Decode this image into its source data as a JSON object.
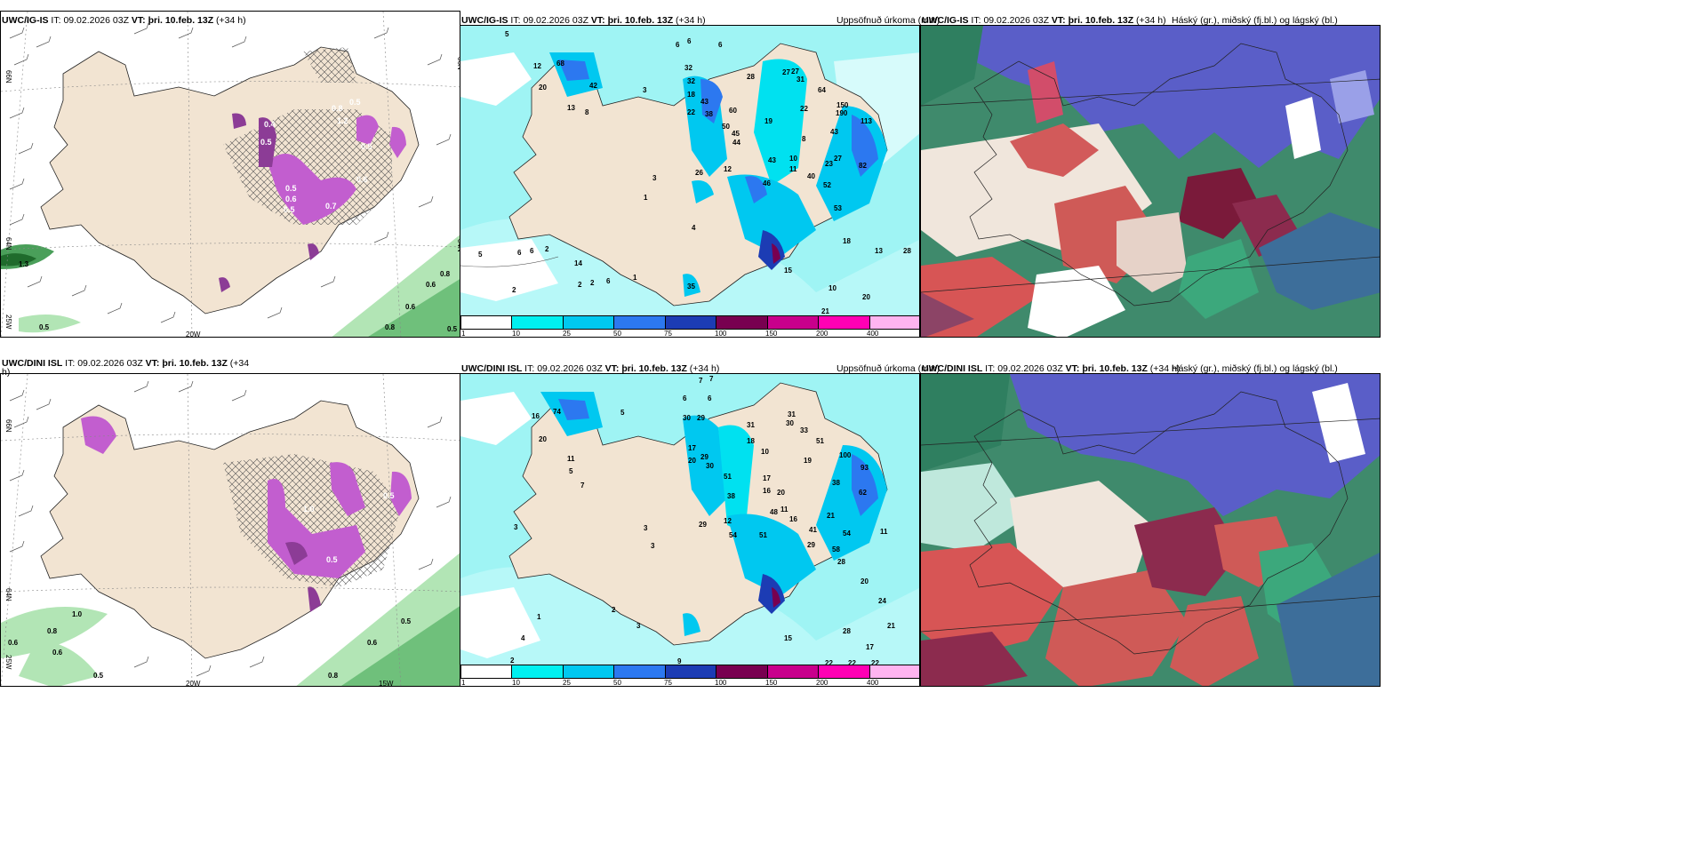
{
  "panels": {
    "top_left": {
      "model": "UWC/IG-IS",
      "it_label": "IT:",
      "it": "09.02.2026 03Z",
      "vt_label": "VT:",
      "vt": "þri. 10.feb. 13Z",
      "lead": "(+34 h)"
    },
    "top_mid": {
      "model": "UWC/IG-IS",
      "it_label": "IT:",
      "it": "09.02.2026 03Z",
      "vt_label": "VT:",
      "vt": "þri. 10.feb. 13Z",
      "lead": "(+34 h)",
      "right": "Uppsöfnuð úrkoma (mm)"
    },
    "top_right": {
      "model": "UWC/IG-IS",
      "it_label": "IT:",
      "it": "09.02.2026 03Z",
      "vt_label": "VT:",
      "vt": "þri. 10.feb. 13Z",
      "lead": "(+34 h)",
      "right": "Háský (gr.), miðský (fj.bl.) og lágský (bl.)"
    },
    "bot_left": {
      "model": "UWC/DINI ISL",
      "it_label": "IT:",
      "it": "09.02.2026 03Z",
      "vt_label": "VT:",
      "vt": "þri. 10.feb. 13Z",
      "lead": "(+34",
      "lead2": "h)"
    },
    "bot_mid": {
      "model": "UWC/DINI ISL",
      "it_label": "IT:",
      "it": "09.02.2026 03Z",
      "vt_label": "VT:",
      "vt": "þri. 10.feb. 13Z",
      "lead": "(+34 h)",
      "right": "Uppsöfnuð úrkoma (mm)"
    },
    "bot_right": {
      "model": "UWC/DINI ISL",
      "it_label": "IT:",
      "it": "09.02.2026 03Z",
      "vt_label": "VT:",
      "vt": "þri. 10.feb. 13Z",
      "lead": "(+34 h)",
      "right": "Háský (gr.), miðský (fj.bl.) og lágský (bl.)"
    }
  },
  "axis": {
    "lat66": "66N",
    "lat64": "64N",
    "lon25": "25W",
    "lon20": "20W",
    "lon15": "15W"
  },
  "colorbar": {
    "labels": [
      "1",
      "10",
      "25",
      "50",
      "75",
      "100",
      "150",
      "200",
      "400"
    ],
    "colors": [
      "#ffffff",
      "#00f0f0",
      "#00c8f0",
      "#2c78f0",
      "#1c3cb4",
      "#780050",
      "#c8008c",
      "#ff00b4",
      "#ffb4f0"
    ]
  },
  "labels": {
    "tl_snow": [
      "0.8",
      "0.5",
      "1.2",
      "0.4",
      "0.5",
      "0.5",
      "0.6",
      "0.7",
      "0.5",
      "0.6",
      "0.5",
      "1.3",
      "0.8",
      "0.6",
      "0.6",
      "0.5",
      "0.8",
      "0.5"
    ],
    "bl_snow": [
      "1.0",
      "0.8",
      "0.6",
      "0.6",
      "0.5",
      "0.6",
      "0.5",
      "0.8",
      "1.0",
      "0.5",
      "0.5"
    ],
    "tm_precip": [
      "5",
      "12",
      "20",
      "68",
      "42",
      "13",
      "8",
      "3",
      "6",
      "6",
      "6",
      "32",
      "32",
      "18",
      "43",
      "22",
      "38",
      "60",
      "50",
      "44",
      "45",
      "28",
      "27",
      "27",
      "31",
      "22",
      "64",
      "150",
      "190",
      "43",
      "113",
      "19",
      "8",
      "10",
      "11",
      "43",
      "23",
      "27",
      "82",
      "40",
      "52",
      "53",
      "46",
      "12",
      "26",
      "1",
      "3",
      "5",
      "6",
      "6",
      "2",
      "4",
      "2",
      "2",
      "2",
      "6",
      "1",
      "14",
      "18",
      "13",
      "28",
      "10",
      "15",
      "20",
      "21",
      "35"
    ],
    "bm_precip": [
      "7",
      "7",
      "6",
      "5",
      "16",
      "74",
      "20",
      "11",
      "5",
      "7",
      "6",
      "30",
      "29",
      "17",
      "29",
      "20",
      "30",
      "51",
      "38",
      "31",
      "18",
      "10",
      "31",
      "30",
      "33",
      "51",
      "19",
      "17",
      "20",
      "16",
      "11",
      "16",
      "21",
      "41",
      "48",
      "38",
      "100",
      "93",
      "62",
      "54",
      "58",
      "12",
      "29",
      "54",
      "51",
      "29",
      "28",
      "3",
      "3",
      "3",
      "2",
      "1",
      "4",
      "2",
      "3",
      "9",
      "15",
      "20",
      "24",
      "21",
      "17",
      "28",
      "22",
      "22",
      "22",
      "11"
    ]
  }
}
